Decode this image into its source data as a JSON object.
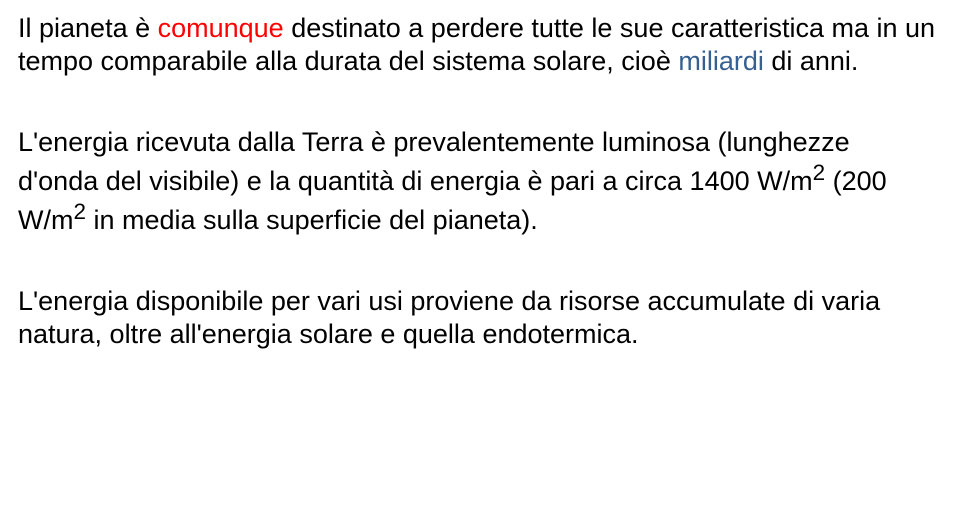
{
  "colors": {
    "text_default": "#000000",
    "text_red": "#ff0000",
    "text_blue": "#376092",
    "background": "#ffffff"
  },
  "typography": {
    "font_family": "Comic Sans MS",
    "font_size_pt": 20,
    "line_height": 1.22
  },
  "paragraphs": [
    {
      "spans": [
        {
          "text": "Il pianeta è ",
          "color": "#000000"
        },
        {
          "text": "comunque",
          "color": "#ff0000"
        },
        {
          "text": " destinato a perdere tutte le sue caratteristica ma in un tempo comparabile alla durata del sistema solare, cioè ",
          "color": "#000000"
        },
        {
          "text": "miliardi",
          "color": "#376092"
        },
        {
          "text": " di anni.",
          "color": "#000000"
        }
      ]
    },
    {
      "spans": [
        {
          "text": "L'energia ricevuta dalla Terra è prevalentemente luminosa (lunghezze d'onda del visibile) e la quantità di energia è pari a circa 1400 W/m",
          "color": "#000000"
        },
        {
          "text": "2",
          "color": "#000000",
          "sup": true
        },
        {
          "text": " (200 W/m",
          "color": "#000000"
        },
        {
          "text": "2",
          "color": "#000000",
          "sup": true
        },
        {
          "text": " in media sulla superficie del pianeta).",
          "color": "#000000"
        }
      ]
    },
    {
      "spans": [
        {
          "text": "L'energia disponibile per vari usi proviene da risorse accumulate di varia natura, oltre all'energia solare e quella endotermica.",
          "color": "#000000"
        }
      ]
    }
  ]
}
